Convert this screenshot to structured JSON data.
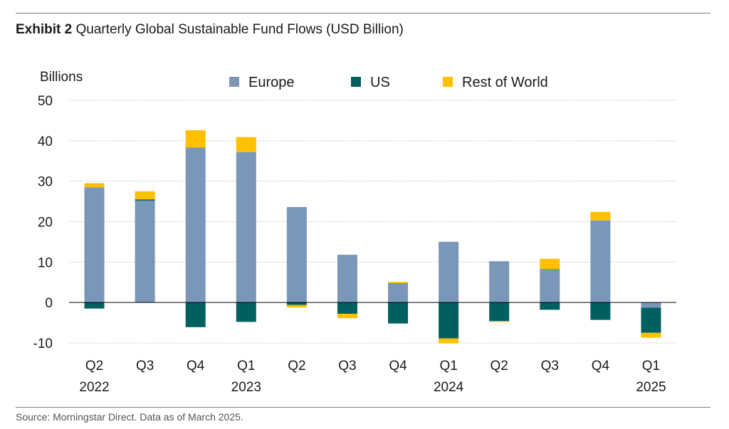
{
  "header": {
    "exhibit_label": "Exhibit 2",
    "title": "Quarterly Global Sustainable Fund Flows (USD Billion)"
  },
  "footer": {
    "source": "Source: Morningstar Direct. Data as of March 2025."
  },
  "chart_data": {
    "type": "bar",
    "stacked": true,
    "title": "Quarterly Global Sustainable Fund Flows (USD Billion)",
    "ylabel": "Billions",
    "xlabel": "",
    "ylim": [
      -10,
      50
    ],
    "yticks": [
      50,
      40,
      30,
      20,
      10,
      0,
      -10
    ],
    "ytick_labels": [
      "50",
      "40",
      "30",
      "20",
      "10",
      "0",
      "-10"
    ],
    "grid": true,
    "legend_position": "top",
    "categories": [
      "Q2 2022",
      "Q3 2022",
      "Q4 2022",
      "Q1 2023",
      "Q2 2023",
      "Q3 2023",
      "Q4 2023",
      "Q1 2024",
      "Q2 2024",
      "Q3 2024",
      "Q4 2024",
      "Q1 2025"
    ],
    "x_tick_labels": [
      {
        "quarter": "Q2",
        "year": "2022"
      },
      {
        "quarter": "Q3",
        "year": ""
      },
      {
        "quarter": "Q4",
        "year": ""
      },
      {
        "quarter": "Q1",
        "year": "2023"
      },
      {
        "quarter": "Q2",
        "year": ""
      },
      {
        "quarter": "Q3",
        "year": ""
      },
      {
        "quarter": "Q4",
        "year": ""
      },
      {
        "quarter": "Q1",
        "year": "2024"
      },
      {
        "quarter": "Q2",
        "year": ""
      },
      {
        "quarter": "Q3",
        "year": ""
      },
      {
        "quarter": "Q4",
        "year": ""
      },
      {
        "quarter": "Q1",
        "year": "2025"
      }
    ],
    "series": [
      {
        "name": "Europe",
        "color": "#7a96b8",
        "values": [
          28.5,
          25.2,
          38.3,
          37.2,
          23.6,
          11.8,
          4.8,
          15.0,
          10.2,
          8.3,
          20.3,
          -1.3
        ]
      },
      {
        "name": "US",
        "color": "#006060",
        "values": [
          -1.5,
          0.3,
          -6.1,
          -4.8,
          -0.6,
          -2.8,
          -5.2,
          -8.9,
          -4.6,
          -1.8,
          -4.3,
          -6.2
        ]
      },
      {
        "name": "Rest of World",
        "color": "#ffc000",
        "values": [
          1.0,
          2.0,
          4.3,
          3.7,
          -0.6,
          -1.1,
          0.3,
          -1.2,
          -0.2,
          2.5,
          2.1,
          -1.2
        ]
      }
    ]
  }
}
